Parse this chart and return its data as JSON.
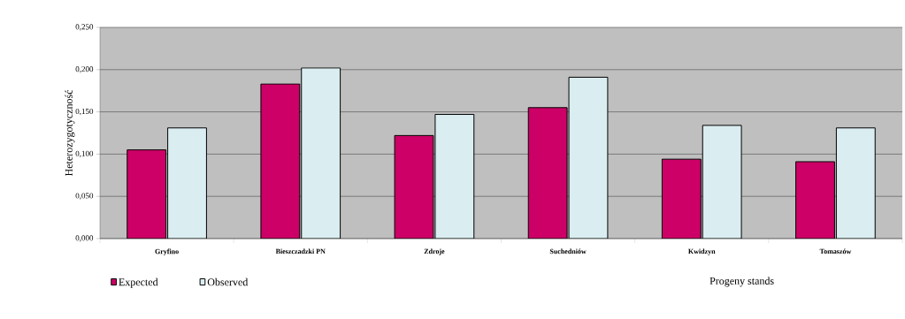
{
  "chart_data": {
    "type": "bar",
    "xlabel": "Progeny stands",
    "ylabel": "Heterozygotyczność",
    "categories": [
      "Gryfino",
      "Bieszczadzki PN",
      "Zdroje",
      "Suchedniów",
      "Kwidzyn",
      "Tomaszów"
    ],
    "series": [
      {
        "name": "Expected",
        "color": "#cc0066",
        "values": [
          0.105,
          0.183,
          0.122,
          0.155,
          0.094,
          0.091
        ]
      },
      {
        "name": "Observed",
        "color": "#daedf0",
        "values": [
          0.131,
          0.202,
          0.147,
          0.191,
          0.134,
          0.131
        ]
      }
    ],
    "ylim": [
      0,
      0.25
    ],
    "yticks": [
      {
        "value": 0,
        "label": "0,000"
      },
      {
        "value": 0.05,
        "label": "0,050"
      },
      {
        "value": 0.1,
        "label": "0,100"
      },
      {
        "value": 0.15,
        "label": "0,150"
      },
      {
        "value": 0.2,
        "label": "0,200"
      },
      {
        "value": 0.25,
        "label": "0,250"
      }
    ],
    "grid": "y",
    "legend": "bottom"
  }
}
